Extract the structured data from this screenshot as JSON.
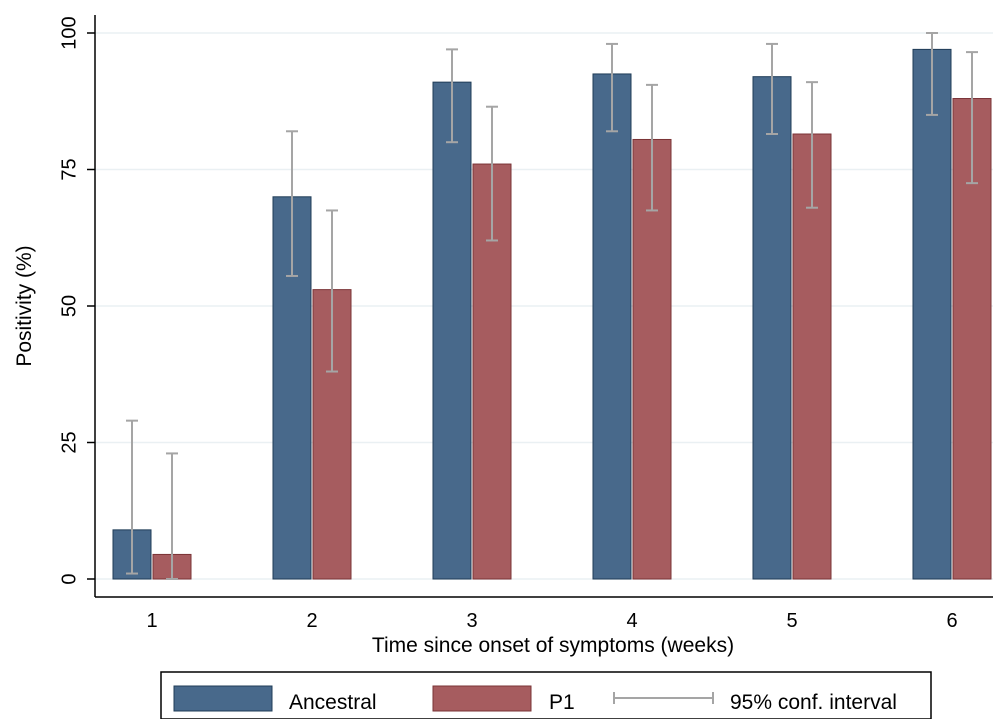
{
  "chart_data": {
    "type": "bar",
    "title": "",
    "xlabel": "Time since onset of symptoms (weeks)",
    "ylabel": "Positivity (%)",
    "ylim": [
      0,
      100
    ],
    "yticks": [
      0,
      25,
      50,
      75,
      100
    ],
    "grid": true,
    "legend_position": "bottom",
    "categories": [
      "1",
      "2",
      "3",
      "4",
      "5",
      "6"
    ],
    "series": [
      {
        "name": "Ancestral",
        "color": "#48698b",
        "values": [
          9,
          70,
          91,
          92.5,
          92,
          97
        ],
        "ci_low": [
          1,
          55.5,
          80,
          82,
          81.5,
          85
        ],
        "ci_high": [
          29,
          82,
          97,
          98,
          98,
          100
        ]
      },
      {
        "name": "P1",
        "color": "#a65c5f",
        "values": [
          4.5,
          53,
          76,
          80.5,
          81.5,
          88
        ],
        "ci_low": [
          0,
          38,
          62,
          67.5,
          68,
          72.5
        ],
        "ci_high": [
          23,
          67.5,
          86.5,
          90.5,
          91,
          96.5
        ]
      }
    ],
    "legend": [
      "Ancestral",
      "P1",
      "95% conf. interval"
    ],
    "errorbar_color": "#a5a5a5"
  }
}
